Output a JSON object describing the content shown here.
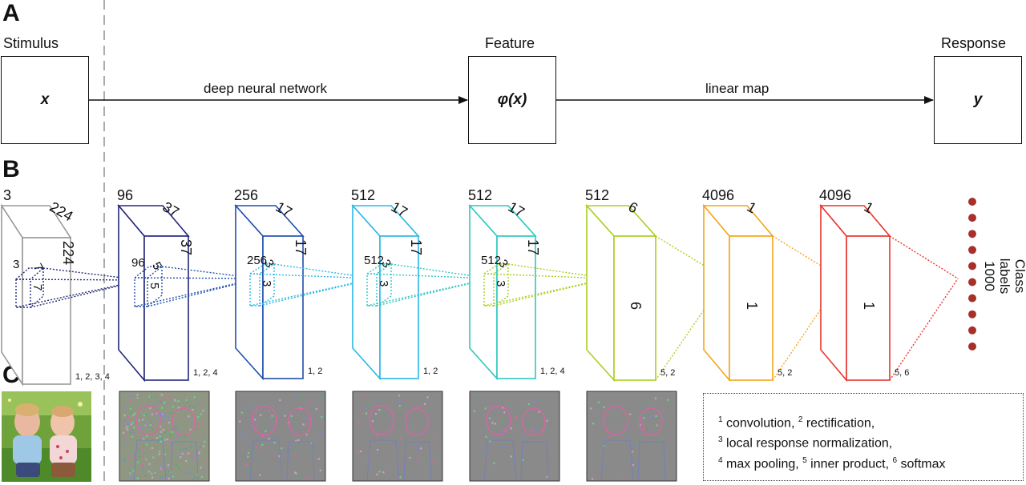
{
  "panels": {
    "a": "A",
    "b": "B",
    "c": "C"
  },
  "panel_a": {
    "stimulus_header": "Stimulus",
    "feature_header": "Feature",
    "response_header": "Response",
    "stimulus_symbol": "x",
    "feature_symbol": "φ(x)",
    "response_symbol": "y",
    "arrow1_label": "deep neural network",
    "arrow2_label": "linear map"
  },
  "panel_b": {
    "layers": [
      {
        "id": "input",
        "color": "#999999",
        "top_labels": [
          "3",
          "224"
        ],
        "side_label": "224",
        "kernel": [
          "3",
          "7",
          "7"
        ],
        "footnote": "1, 2, 3, 4"
      },
      {
        "id": "conv1",
        "color": "#23287a",
        "top_labels": [
          "96",
          "37"
        ],
        "side_label": "37",
        "kernel": [
          "96",
          "5",
          "5"
        ],
        "footnote": "1, 2, 4"
      },
      {
        "id": "conv2",
        "color": "#1f4fae",
        "top_labels": [
          "256",
          "17"
        ],
        "side_label": "17",
        "kernel": [
          "256",
          "3",
          "3"
        ],
        "footnote": "1, 2"
      },
      {
        "id": "conv3",
        "color": "#29b8e6",
        "top_labels": [
          "512",
          "17"
        ],
        "side_label": "17",
        "kernel": [
          "512",
          "3",
          "3"
        ],
        "footnote": "1, 2"
      },
      {
        "id": "conv4",
        "color": "#2ec7c2",
        "top_labels": [
          "512",
          "17"
        ],
        "side_label": "17",
        "kernel": [
          "512",
          "3",
          "3"
        ],
        "footnote": "1, 2, 4"
      },
      {
        "id": "fc1",
        "color": "#a9cf20",
        "top_labels": [
          "512",
          "6"
        ],
        "side_label": "6",
        "footnote": "5, 2"
      },
      {
        "id": "fc2",
        "color": "#f5a41c",
        "top_labels": [
          "4096",
          "1"
        ],
        "side_label": "1",
        "footnote": "5, 2"
      },
      {
        "id": "fc3",
        "color": "#e8352e",
        "top_labels": [
          "4096",
          "1"
        ],
        "side_label": "1",
        "footnote": "5, 6"
      }
    ],
    "output_label_line1": "Class labels",
    "output_label_line2": "1000",
    "output_dot_color": "#a8302a",
    "output_dot_count": 10
  },
  "panel_c": {
    "legend_lines": [
      [
        {
          "sup": "1"
        },
        {
          "text": " convolution, "
        },
        {
          "sup": "2"
        },
        {
          "text": " rectification,"
        }
      ],
      [
        {
          "sup": "3"
        },
        {
          "text": " local response normalization,"
        }
      ],
      [
        {
          "sup": "4"
        },
        {
          "text": " max pooling, "
        },
        {
          "sup": "5"
        },
        {
          "text": " inner product, "
        },
        {
          "sup": "6"
        },
        {
          "text": " softmax"
        }
      ]
    ],
    "tiles": [
      "photo-stimulus",
      "feature-map-1",
      "feature-map-2",
      "feature-map-3",
      "feature-map-4",
      "feature-map-5"
    ]
  }
}
